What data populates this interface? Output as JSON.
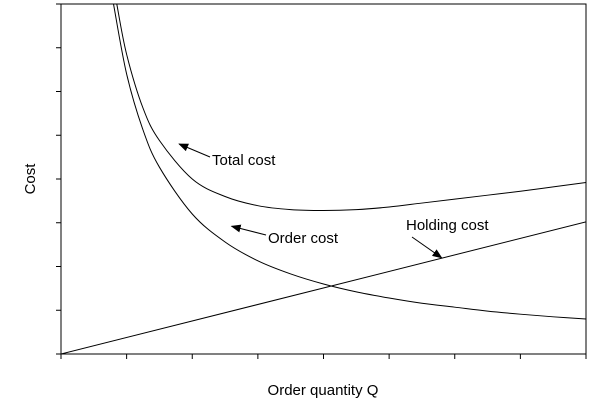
{
  "chart_data": {
    "type": "line",
    "title": "",
    "xlabel": "Order quantity Q",
    "ylabel": "Cost",
    "xlim": [
      0,
      8
    ],
    "ylim": [
      0,
      8
    ],
    "grid": false,
    "legend": "none",
    "series": [
      {
        "name": "Total cost",
        "x": [
          0.85,
          1.0,
          1.25,
          1.5,
          2.0,
          2.5,
          3.0,
          3.5,
          4.0,
          4.5,
          5.0,
          5.5,
          6.0,
          6.5,
          7.0,
          7.5,
          8.0
        ],
        "y": [
          8.0,
          6.85,
          5.62,
          4.88,
          4.0,
          3.6,
          3.39,
          3.3,
          3.28,
          3.3,
          3.36,
          3.45,
          3.54,
          3.63,
          3.72,
          3.82,
          3.92
        ]
      },
      {
        "name": "Order cost",
        "x": [
          0.8,
          1.0,
          1.25,
          1.5,
          2.0,
          2.5,
          3.0,
          3.5,
          4.0,
          4.5,
          5.0,
          5.5,
          6.0,
          6.5,
          7.0,
          7.5,
          8.0
        ],
        "y": [
          8.0,
          6.4,
          5.12,
          4.27,
          3.2,
          2.56,
          2.13,
          1.83,
          1.6,
          1.42,
          1.28,
          1.16,
          1.07,
          0.98,
          0.91,
          0.85,
          0.8
        ]
      },
      {
        "name": "Holding cost",
        "x": [
          0.0,
          8.0
        ],
        "y": [
          0.0,
          3.02
        ]
      }
    ],
    "annotations": [
      {
        "text": "Total cost",
        "target": [
          1.8,
          4.8
        ]
      },
      {
        "text": "Order cost",
        "target": [
          2.6,
          2.92
        ]
      },
      {
        "text": "Holding cost",
        "target": [
          5.8,
          2.2
        ]
      }
    ],
    "y_ticks": [
      0,
      1,
      2,
      3,
      4,
      5,
      6,
      7,
      8
    ],
    "x_ticks": [
      0,
      1,
      2,
      3,
      4,
      5,
      6,
      7,
      8
    ]
  }
}
